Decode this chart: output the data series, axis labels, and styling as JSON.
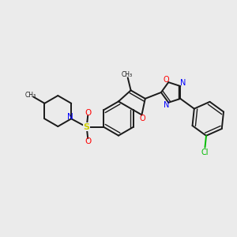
{
  "bg_color": "#ebebeb",
  "bond_color": "#1a1a1a",
  "N_color": "#0000ff",
  "O_color": "#ff0000",
  "S_color": "#cccc00",
  "Cl_color": "#00bb00",
  "figsize": [
    3.0,
    3.0
  ],
  "dpi": 100,
  "xlim": [
    0,
    10
  ],
  "ylim": [
    0,
    10
  ]
}
